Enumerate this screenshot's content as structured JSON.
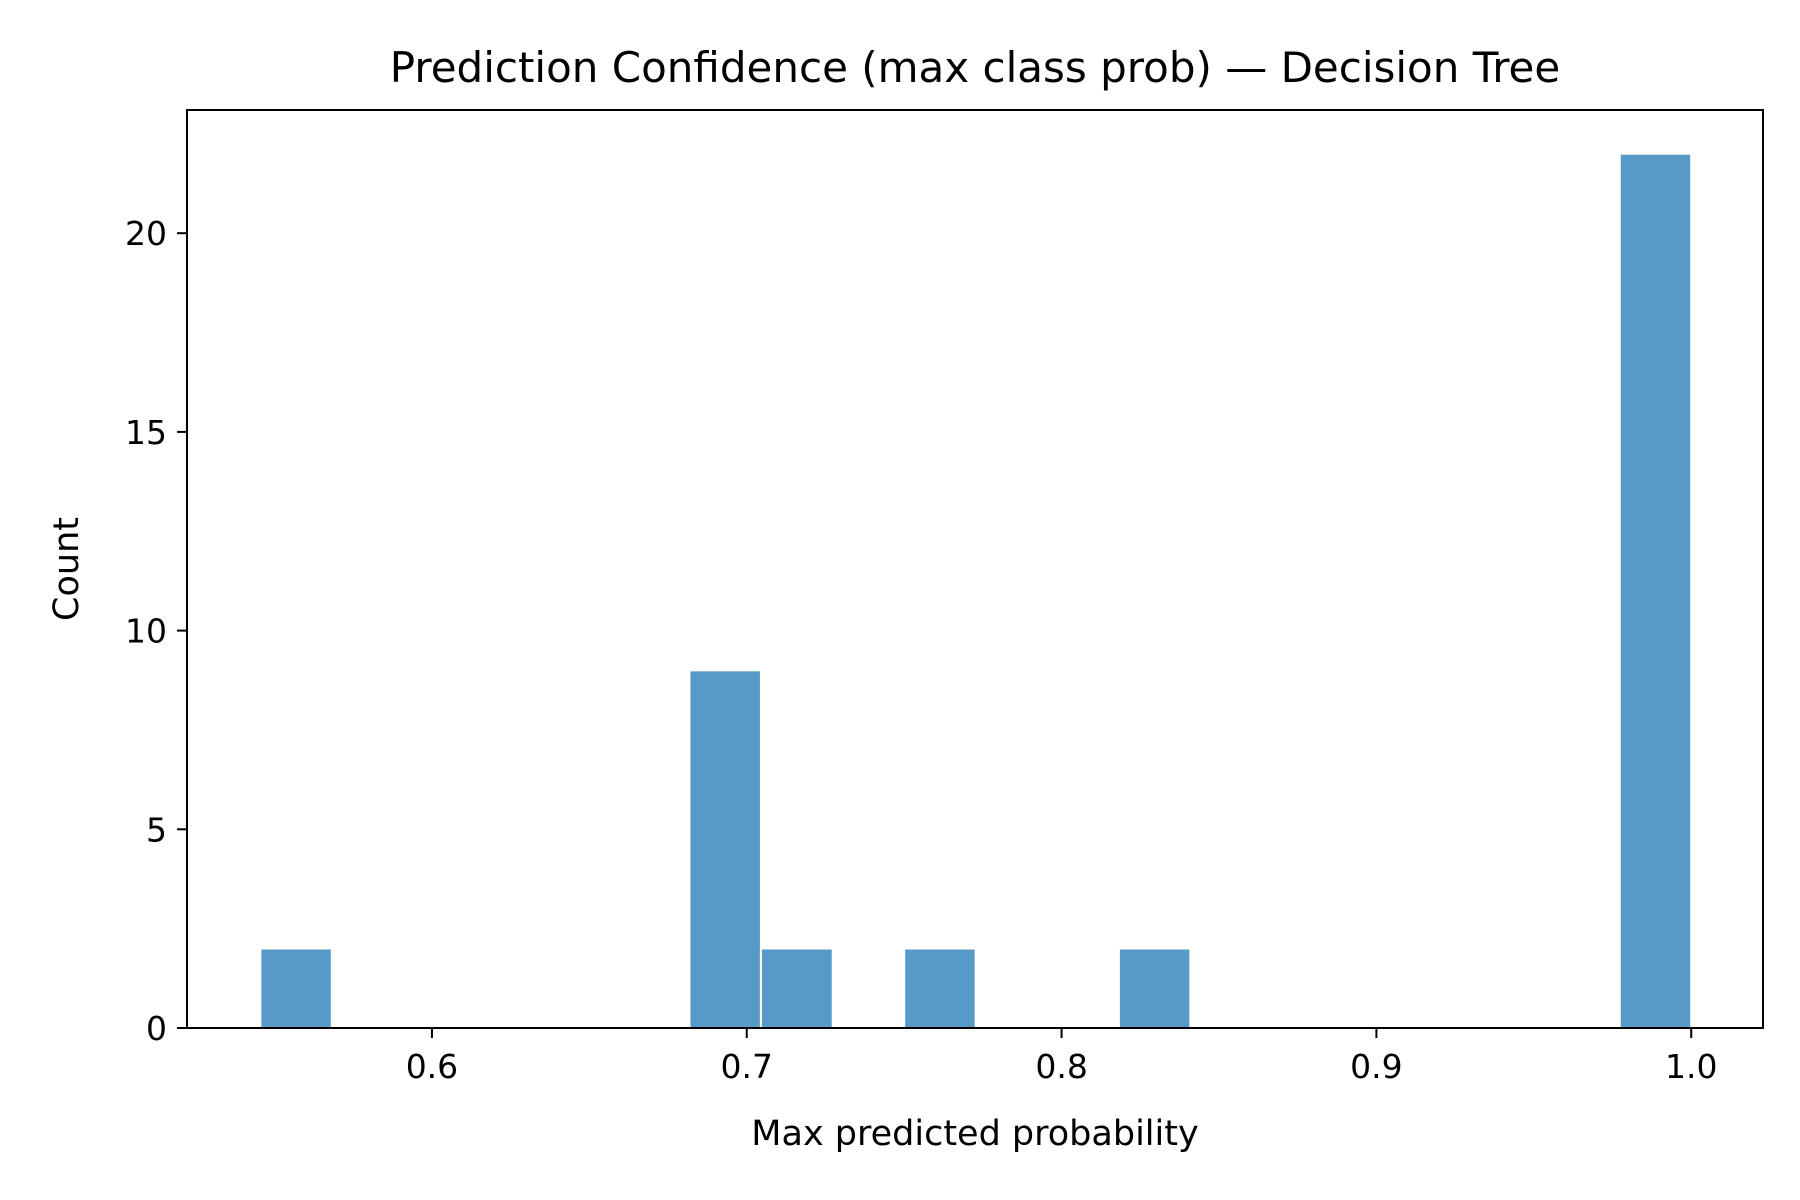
{
  "chart_data": {
    "type": "bar",
    "title": "Prediction Confidence (max class prob) — Decision Tree",
    "xlabel": "Max predicted probability",
    "ylabel": "Count",
    "xlim": [
      0.5222,
      1.0228
    ],
    "ylim": [
      0,
      23.1
    ],
    "xticks": [
      "0.6",
      "0.7",
      "0.8",
      "0.9",
      "1.0"
    ],
    "yticks": [
      "0",
      "5",
      "10",
      "15",
      "20"
    ],
    "grid": false,
    "bar_color": "#5799c7",
    "bins": [
      {
        "x0": 0.5455,
        "x1": 0.5682,
        "count": 2
      },
      {
        "x0": 0.6818,
        "x1": 0.7045,
        "count": 9
      },
      {
        "x0": 0.7045,
        "x1": 0.7273,
        "count": 2
      },
      {
        "x0": 0.75,
        "x1": 0.7727,
        "count": 2
      },
      {
        "x0": 0.8182,
        "x1": 0.8409,
        "count": 2
      },
      {
        "x0": 0.9773,
        "x1": 1.0,
        "count": 22
      }
    ]
  }
}
